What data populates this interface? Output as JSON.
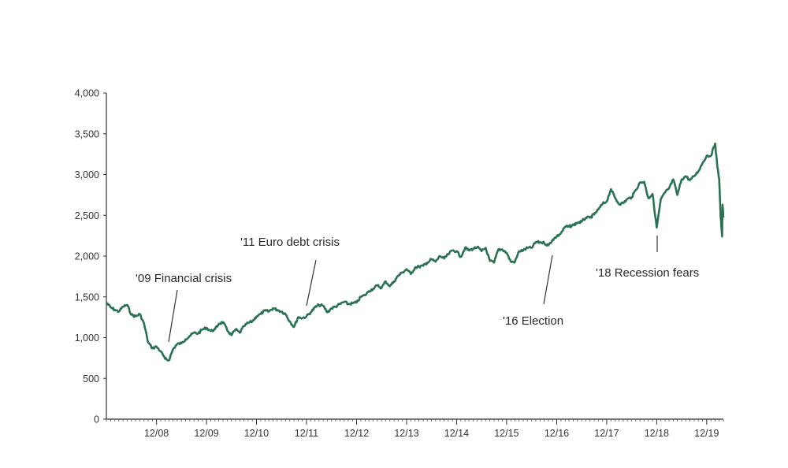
{
  "chart_data": {
    "type": "line",
    "title": "",
    "xlabel": "",
    "ylabel": "",
    "ylim": [
      0,
      4000
    ],
    "xlim": [
      "2007-12-01",
      "2020-04-01"
    ],
    "grid": false,
    "y_ticks": [
      {
        "value": 0,
        "label": "0"
      },
      {
        "value": 500,
        "label": "500"
      },
      {
        "value": 1000,
        "label": "1,000"
      },
      {
        "value": 1500,
        "label": "1,500"
      },
      {
        "value": 2000,
        "label": "2,000"
      },
      {
        "value": 2500,
        "label": "2,500"
      },
      {
        "value": 3000,
        "label": "3,000"
      },
      {
        "value": 3500,
        "label": "3,500"
      },
      {
        "value": 4000,
        "label": "4,000"
      }
    ],
    "x_ticks": [
      {
        "date": "2008-12-01",
        "label": "12/08"
      },
      {
        "date": "2009-12-01",
        "label": "12/09"
      },
      {
        "date": "2010-12-01",
        "label": "12/10"
      },
      {
        "date": "2011-12-01",
        "label": "12/11"
      },
      {
        "date": "2012-12-01",
        "label": "12/12"
      },
      {
        "date": "2013-12-01",
        "label": "12/13"
      },
      {
        "date": "2014-12-01",
        "label": "12/14"
      },
      {
        "date": "2015-12-01",
        "label": "12/15"
      },
      {
        "date": "2016-12-01",
        "label": "12/16"
      },
      {
        "date": "2017-12-01",
        "label": "12/17"
      },
      {
        "date": "2018-12-01",
        "label": "12/18"
      },
      {
        "date": "2019-12-01",
        "label": "12/19"
      }
    ],
    "series": [
      {
        "color": "#2a7252",
        "points": [
          [
            "2007-12-01",
            1430
          ],
          [
            "2008-01-01",
            1370
          ],
          [
            "2008-02-01",
            1340
          ],
          [
            "2008-03-01",
            1320
          ],
          [
            "2008-04-01",
            1380
          ],
          [
            "2008-05-01",
            1400
          ],
          [
            "2008-06-01",
            1280
          ],
          [
            "2008-07-01",
            1260
          ],
          [
            "2008-08-01",
            1290
          ],
          [
            "2008-09-01",
            1170
          ],
          [
            "2008-10-01",
            940
          ],
          [
            "2008-11-01",
            870
          ],
          [
            "2008-12-01",
            890
          ],
          [
            "2009-01-01",
            830
          ],
          [
            "2009-02-01",
            740
          ],
          [
            "2009-03-01",
            720
          ],
          [
            "2009-04-01",
            860
          ],
          [
            "2009-05-01",
            920
          ],
          [
            "2009-06-01",
            930
          ],
          [
            "2009-07-01",
            980
          ],
          [
            "2009-08-01",
            1020
          ],
          [
            "2009-09-01",
            1060
          ],
          [
            "2009-10-01",
            1050
          ],
          [
            "2009-11-01",
            1100
          ],
          [
            "2009-12-01",
            1120
          ],
          [
            "2010-01-01",
            1080
          ],
          [
            "2010-02-01",
            1100
          ],
          [
            "2010-03-01",
            1170
          ],
          [
            "2010-04-01",
            1190
          ],
          [
            "2010-05-01",
            1090
          ],
          [
            "2010-06-01",
            1030
          ],
          [
            "2010-07-01",
            1100
          ],
          [
            "2010-08-01",
            1060
          ],
          [
            "2010-09-01",
            1140
          ],
          [
            "2010-10-01",
            1180
          ],
          [
            "2010-11-01",
            1200
          ],
          [
            "2010-12-01",
            1260
          ],
          [
            "2011-01-01",
            1290
          ],
          [
            "2011-02-01",
            1330
          ],
          [
            "2011-03-01",
            1320
          ],
          [
            "2011-04-01",
            1360
          ],
          [
            "2011-05-01",
            1340
          ],
          [
            "2011-06-01",
            1320
          ],
          [
            "2011-07-01",
            1290
          ],
          [
            "2011-08-01",
            1200
          ],
          [
            "2011-09-01",
            1130
          ],
          [
            "2011-10-01",
            1250
          ],
          [
            "2011-11-01",
            1240
          ],
          [
            "2011-12-01",
            1260
          ],
          [
            "2012-01-01",
            1310
          ],
          [
            "2012-02-01",
            1370
          ],
          [
            "2012-03-01",
            1400
          ],
          [
            "2012-04-01",
            1390
          ],
          [
            "2012-05-01",
            1310
          ],
          [
            "2012-06-01",
            1360
          ],
          [
            "2012-07-01",
            1380
          ],
          [
            "2012-08-01",
            1410
          ],
          [
            "2012-09-01",
            1440
          ],
          [
            "2012-10-01",
            1410
          ],
          [
            "2012-11-01",
            1420
          ],
          [
            "2012-12-01",
            1430
          ],
          [
            "2013-01-01",
            1500
          ],
          [
            "2013-02-01",
            1520
          ],
          [
            "2013-03-01",
            1570
          ],
          [
            "2013-04-01",
            1600
          ],
          [
            "2013-05-01",
            1640
          ],
          [
            "2013-06-01",
            1610
          ],
          [
            "2013-07-01",
            1690
          ],
          [
            "2013-08-01",
            1630
          ],
          [
            "2013-09-01",
            1690
          ],
          [
            "2013-10-01",
            1760
          ],
          [
            "2013-11-01",
            1800
          ],
          [
            "2013-12-01",
            1840
          ],
          [
            "2014-01-01",
            1780
          ],
          [
            "2014-02-01",
            1860
          ],
          [
            "2014-03-01",
            1870
          ],
          [
            "2014-04-01",
            1880
          ],
          [
            "2014-05-01",
            1920
          ],
          [
            "2014-06-01",
            1960
          ],
          [
            "2014-07-01",
            1930
          ],
          [
            "2014-08-01",
            2000
          ],
          [
            "2014-09-01",
            1970
          ],
          [
            "2014-10-01",
            2020
          ],
          [
            "2014-11-01",
            2070
          ],
          [
            "2014-12-01",
            2060
          ],
          [
            "2015-01-01",
            1990
          ],
          [
            "2015-02-01",
            2100
          ],
          [
            "2015-03-01",
            2070
          ],
          [
            "2015-04-01",
            2090
          ],
          [
            "2015-05-01",
            2110
          ],
          [
            "2015-06-01",
            2060
          ],
          [
            "2015-07-01",
            2100
          ],
          [
            "2015-08-01",
            1940
          ],
          [
            "2015-09-01",
            1920
          ],
          [
            "2015-10-01",
            2080
          ],
          [
            "2015-11-01",
            2080
          ],
          [
            "2015-12-01",
            2040
          ],
          [
            "2016-01-01",
            1930
          ],
          [
            "2016-02-01",
            1930
          ],
          [
            "2016-03-01",
            2060
          ],
          [
            "2016-04-01",
            2070
          ],
          [
            "2016-05-01",
            2100
          ],
          [
            "2016-06-01",
            2100
          ],
          [
            "2016-07-01",
            2170
          ],
          [
            "2016-08-01",
            2170
          ],
          [
            "2016-09-01",
            2160
          ],
          [
            "2016-10-01",
            2130
          ],
          [
            "2016-11-01",
            2200
          ],
          [
            "2016-12-01",
            2240
          ],
          [
            "2017-01-01",
            2280
          ],
          [
            "2017-02-01",
            2360
          ],
          [
            "2017-03-01",
            2360
          ],
          [
            "2017-04-01",
            2380
          ],
          [
            "2017-05-01",
            2410
          ],
          [
            "2017-06-01",
            2420
          ],
          [
            "2017-07-01",
            2470
          ],
          [
            "2017-08-01",
            2470
          ],
          [
            "2017-09-01",
            2510
          ],
          [
            "2017-10-01",
            2570
          ],
          [
            "2017-11-01",
            2640
          ],
          [
            "2017-12-01",
            2670
          ],
          [
            "2018-01-01",
            2820
          ],
          [
            "2018-02-01",
            2710
          ],
          [
            "2018-03-01",
            2640
          ],
          [
            "2018-04-01",
            2650
          ],
          [
            "2018-05-01",
            2700
          ],
          [
            "2018-06-01",
            2720
          ],
          [
            "2018-07-01",
            2810
          ],
          [
            "2018-08-01",
            2900
          ],
          [
            "2018-09-01",
            2910
          ],
          [
            "2018-10-01",
            2710
          ],
          [
            "2018-11-01",
            2760
          ],
          [
            "2018-12-01",
            2350
          ],
          [
            "2019-01-01",
            2700
          ],
          [
            "2019-02-01",
            2780
          ],
          [
            "2019-03-01",
            2830
          ],
          [
            "2019-04-01",
            2940
          ],
          [
            "2019-05-01",
            2750
          ],
          [
            "2019-06-01",
            2940
          ],
          [
            "2019-07-01",
            2980
          ],
          [
            "2019-08-01",
            2930
          ],
          [
            "2019-09-01",
            2980
          ],
          [
            "2019-10-01",
            3040
          ],
          [
            "2019-11-01",
            3140
          ],
          [
            "2019-12-01",
            3230
          ],
          [
            "2020-01-01",
            3230
          ],
          [
            "2020-02-01",
            3380
          ],
          [
            "2020-02-15",
            3130
          ],
          [
            "2020-03-01",
            2950
          ],
          [
            "2020-03-12",
            2480
          ],
          [
            "2020-03-23",
            2240
          ],
          [
            "2020-03-26",
            2630
          ],
          [
            "2020-04-01",
            2470
          ]
        ]
      }
    ],
    "annotations": [
      {
        "label": "'09 Financial crisis",
        "date": "2009-03-01",
        "value": 720
      },
      {
        "label": "'11 Euro debt crisis",
        "date": "2011-10-01",
        "value": 1200
      },
      {
        "label": "'16 Election",
        "date": "2016-11-01",
        "value": 2150
      },
      {
        "label": "'18 Recession fears",
        "date": "2018-12-01",
        "value": 2350
      }
    ]
  }
}
